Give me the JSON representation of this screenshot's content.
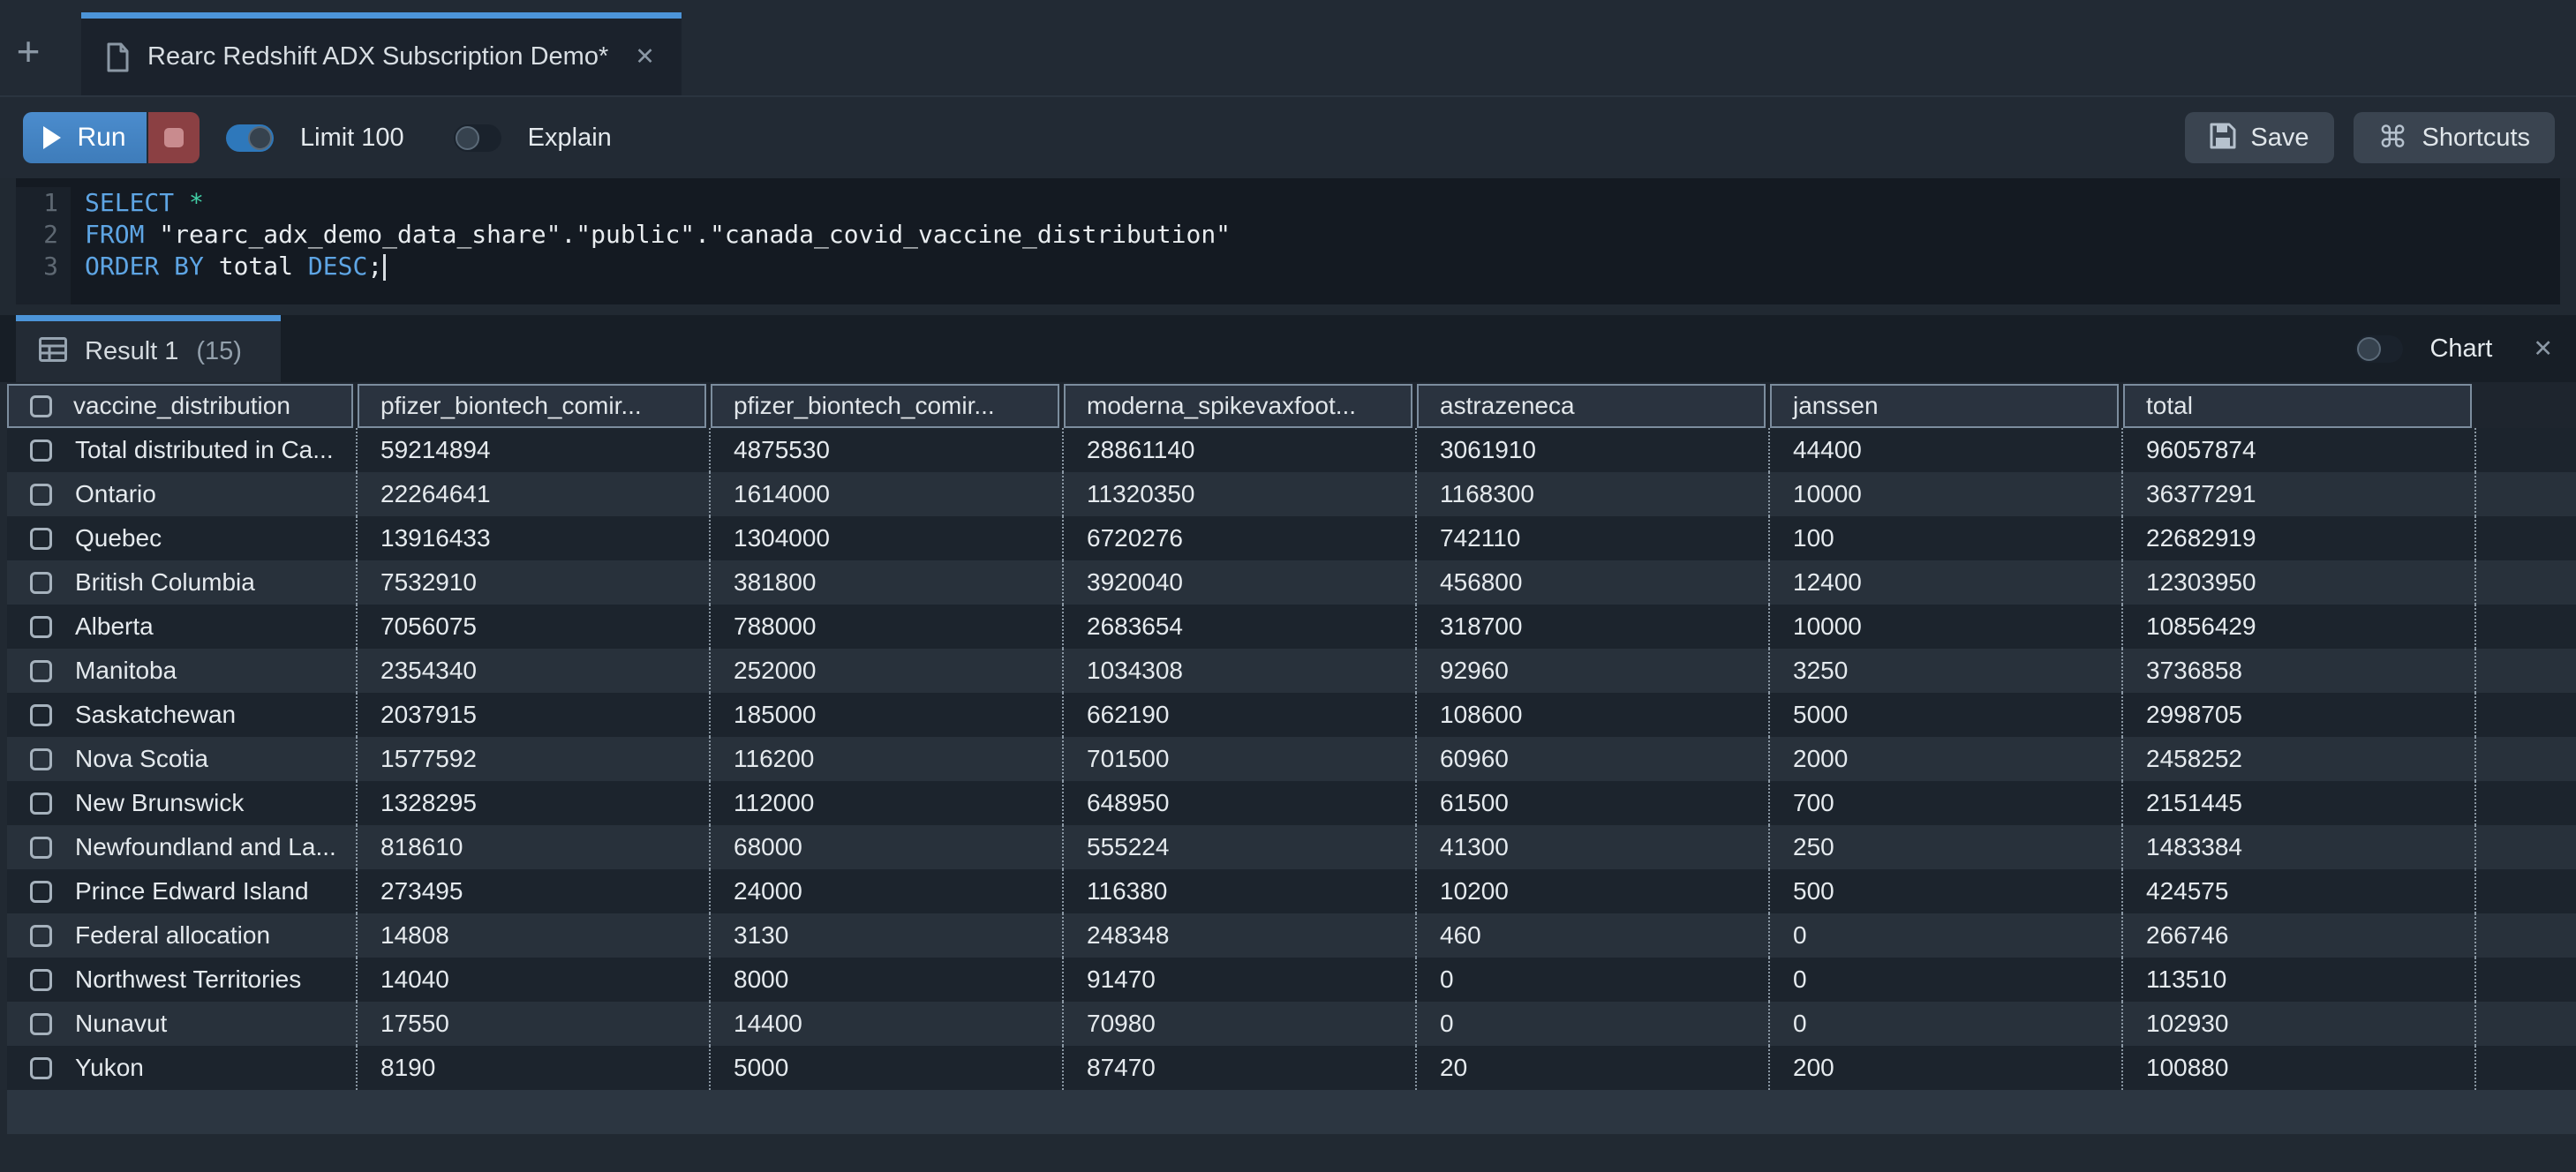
{
  "icons": {
    "new_tab": "+",
    "tab_close": "✕",
    "chart_close": "✕",
    "shortcuts_cmd": "⌘"
  },
  "tab_bar": {
    "title": "Rearc Redshift ADX Subscription Demo*"
  },
  "toolbar": {
    "run": "Run",
    "limit": "Limit 100",
    "explain": "Explain",
    "save": "Save",
    "shortcuts": "Shortcuts",
    "limit_toggle_on": true,
    "explain_toggle_on": false
  },
  "editor": {
    "lines": [
      {
        "number": "1",
        "segments": [
          {
            "text": "SELECT",
            "type": "keyword"
          },
          {
            "text": " ",
            "type": "plain"
          },
          {
            "text": "*",
            "type": "operator"
          }
        ]
      },
      {
        "number": "2",
        "segments": [
          {
            "text": "FROM",
            "type": "keyword"
          },
          {
            "text": " \"rearc_adx_demo_data_share\".\"public\".\"canada_covid_vaccine_distribution\"",
            "type": "plain"
          }
        ]
      },
      {
        "number": "3",
        "segments": [
          {
            "text": "ORDER BY",
            "type": "keyword"
          },
          {
            "text": " total ",
            "type": "plain"
          },
          {
            "text": "DESC",
            "type": "keyword"
          },
          {
            "text": ";",
            "type": "plain"
          }
        ],
        "cursor": true
      }
    ]
  },
  "results": {
    "tab_label": "Result 1",
    "row_count_badge": "(15)",
    "chart_label": "Chart",
    "chart_toggle_on": false,
    "table": {
      "columns": [
        "vaccine_distribution",
        "pfizer_biontech_comir...",
        "pfizer_biontech_comir...",
        "moderna_spikevaxfoot...",
        "astrazeneca",
        "janssen",
        "total"
      ],
      "rows": [
        {
          "name": "Total distributed in Ca...",
          "values": [
            "59214894",
            "4875530",
            "28861140",
            "3061910",
            "44400",
            "96057874"
          ]
        },
        {
          "name": "Ontario",
          "values": [
            "22264641",
            "1614000",
            "11320350",
            "1168300",
            "10000",
            "36377291"
          ]
        },
        {
          "name": "Quebec",
          "values": [
            "13916433",
            "1304000",
            "6720276",
            "742110",
            "100",
            "22682919"
          ]
        },
        {
          "name": "British Columbia",
          "values": [
            "7532910",
            "381800",
            "3920040",
            "456800",
            "12400",
            "12303950"
          ]
        },
        {
          "name": "Alberta",
          "values": [
            "7056075",
            "788000",
            "2683654",
            "318700",
            "10000",
            "10856429"
          ]
        },
        {
          "name": "Manitoba",
          "values": [
            "2354340",
            "252000",
            "1034308",
            "92960",
            "3250",
            "3736858"
          ]
        },
        {
          "name": "Saskatchewan",
          "values": [
            "2037915",
            "185000",
            "662190",
            "108600",
            "5000",
            "2998705"
          ]
        },
        {
          "name": "Nova Scotia",
          "values": [
            "1577592",
            "116200",
            "701500",
            "60960",
            "2000",
            "2458252"
          ]
        },
        {
          "name": "New Brunswick",
          "values": [
            "1328295",
            "112000",
            "648950",
            "61500",
            "700",
            "2151445"
          ]
        },
        {
          "name": "Newfoundland and La...",
          "values": [
            "818610",
            "68000",
            "555224",
            "41300",
            "250",
            "1483384"
          ]
        },
        {
          "name": "Prince Edward Island",
          "values": [
            "273495",
            "24000",
            "116380",
            "10200",
            "500",
            "424575"
          ]
        },
        {
          "name": "Federal allocation",
          "values": [
            "14808",
            "3130",
            "248348",
            "460",
            "0",
            "266746"
          ]
        },
        {
          "name": "Northwest Territories",
          "values": [
            "14040",
            "8000",
            "91470",
            "0",
            "0",
            "113510"
          ]
        },
        {
          "name": "Nunavut",
          "values": [
            "17550",
            "14400",
            "70980",
            "0",
            "0",
            "102930"
          ]
        },
        {
          "name": "Yukon",
          "values": [
            "8190",
            "5000",
            "87470",
            "20",
            "200",
            "100880"
          ]
        }
      ]
    }
  },
  "colors": {
    "accent_blue": "#4c94d8",
    "run_button_blue": "#4584c6",
    "stop_button_red": "#8b4043",
    "toggle_on_blue": "#2e78bb",
    "keyword_blue": "#5ea5e4",
    "operator_teal": "#41cfa6"
  }
}
